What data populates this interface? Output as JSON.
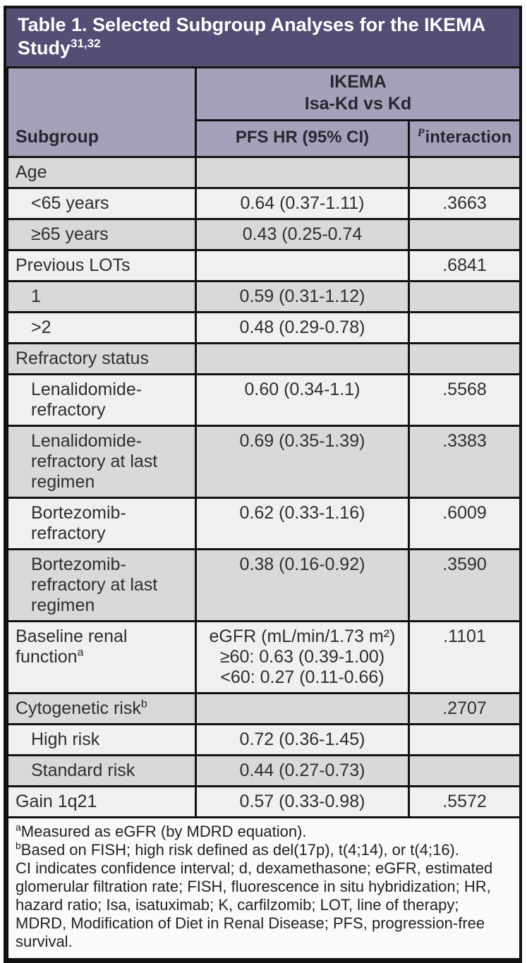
{
  "title": {
    "text": "Table 1. Selected Subgroup Analyses for the IKEMA Study",
    "superscript": "31,32"
  },
  "header": {
    "subgroup_label": "Subgroup",
    "group_line1": "IKEMA",
    "group_line2": "Isa-Kd vs Kd",
    "pfs_hr_label": "PFS HR (95% CI)",
    "p_sup": "P",
    "p_label": "interaction"
  },
  "table": {
    "rows": [
      {
        "label": "Age",
        "indent": false,
        "shade": "gray",
        "hr": "",
        "p": ""
      },
      {
        "label": "<65 years",
        "indent": true,
        "shade": "light",
        "hr": "0.64 (0.37-1.11)",
        "p": ".3663"
      },
      {
        "label": "≥65 years",
        "indent": true,
        "shade": "gray",
        "hr": "0.43 (0.25-0.74",
        "p": ""
      },
      {
        "label": "Previous LOTs",
        "indent": false,
        "shade": "light",
        "hr": "",
        "p": ".6841"
      },
      {
        "label": "1",
        "indent": true,
        "shade": "gray",
        "hr": "0.59 (0.31-1.12)",
        "p": ""
      },
      {
        "label": ">2",
        "indent": true,
        "shade": "light",
        "hr": "0.48 (0.29-0.78)",
        "p": ""
      },
      {
        "label": "Refractory status",
        "indent": false,
        "shade": "gray",
        "hr": "",
        "p": ""
      },
      {
        "label": "Lenalidomide-refractory",
        "indent": true,
        "shade": "light",
        "hr": "0.60 (0.34-1.1)",
        "p": ".5568"
      },
      {
        "label": "Lenalidomide-refractory at last regimen",
        "indent": true,
        "shade": "gray",
        "hr": "0.69 (0.35-1.39)",
        "p": ".3383"
      },
      {
        "label": "Bortezomib-refractory",
        "indent": true,
        "shade": "light",
        "hr": "0.62 (0.33-1.16)",
        "p": ".6009"
      },
      {
        "label": "Bortezomib-refractory at last regimen",
        "indent": true,
        "shade": "gray",
        "hr": "0.38 (0.16-0.92)",
        "p": ".3590"
      },
      {
        "label": "Baseline renal function",
        "label_sup": "a",
        "indent": false,
        "shade": "light",
        "hr_lines": [
          "eGFR (mL/min/1.73 m²)",
          "≥60: 0.63 (0.39-1.00)",
          "<60: 0.27 (0.11-0.66)"
        ],
        "p": ".1101"
      },
      {
        "label": "Cytogenetic risk",
        "label_sup": "b",
        "indent": false,
        "shade": "gray",
        "hr": "",
        "p": ".2707"
      },
      {
        "label": "High risk",
        "indent": true,
        "shade": "light",
        "hr": "0.72 (0.36-1.45)",
        "p": ""
      },
      {
        "label": "Standard risk",
        "indent": true,
        "shade": "gray",
        "hr": "0.44 (0.27-0.73)",
        "p": ""
      },
      {
        "label": "Gain 1q21",
        "indent": false,
        "shade": "light",
        "hr": "0.57 (0.33-0.98)",
        "p": ".5572"
      }
    ]
  },
  "footnotes": [
    {
      "sup": "a",
      "text": "Measured as eGFR (by MDRD equation)."
    },
    {
      "sup": "b",
      "text": "Based on FISH; high risk defined as del(17p), t(4;14), or t(4;16)."
    },
    {
      "sup": "",
      "text": "CI indicates confidence interval; d, dexamethasone; eGFR, estimated glomerular filtration rate; FISH, fluorescence in situ hybridization; HR, hazard ratio; Isa, isatuximab; K, carfilzomib; LOT, line of therapy; MDRD, Modification of Diet in Renal Disease; PFS, progression-free survival."
    }
  ],
  "colors": {
    "title_bg": "#534e74",
    "title_text": "#ffffff",
    "header_bg": "#a6a1bb",
    "row_gray": "#d9d9d9",
    "row_light": "#f0f0f0",
    "footer_bg": "#fafafa",
    "border": "#121212",
    "body_text": "#2e2e2e"
  }
}
